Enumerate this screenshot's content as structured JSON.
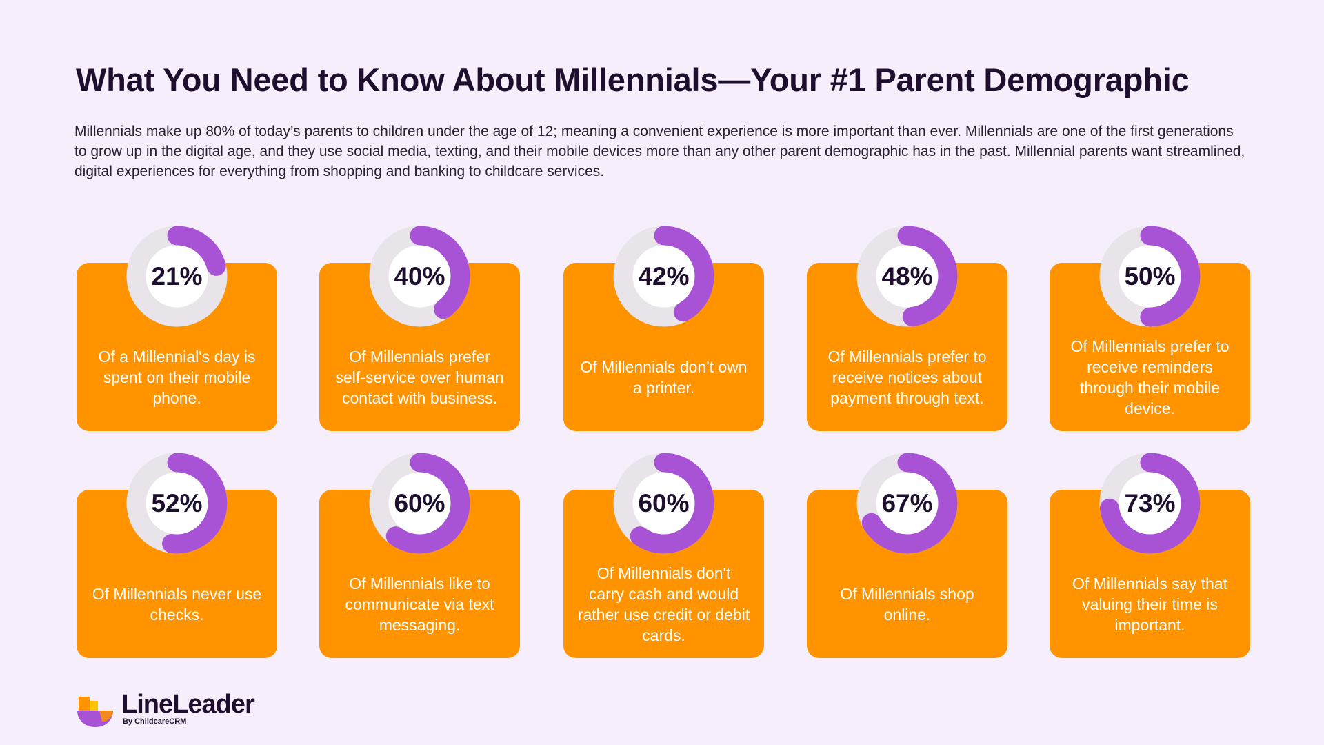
{
  "title": "What You Need to Know About Millennials—Your #1 Parent Demographic",
  "intro": "Millennials make up 80% of today’s parents to children under the age of 12; meaning a convenient experience is more important than ever. Millennials are one of the first generations to grow up in the digital age, and they use social media, texting, and their mobile devices more than any other parent demographic has in the past. Millennial parents want streamlined, digital experiences for everything from shopping and banking to childcare services.",
  "colors": {
    "card": "#ff9400",
    "arc": "#a853d6",
    "track": "#e8e4ea",
    "inner": "#ffffff",
    "background": "#f6eefa"
  },
  "chart_data": {
    "type": "donut",
    "values": [
      21,
      40,
      42,
      48,
      50,
      52,
      60,
      60,
      67,
      73
    ],
    "labels": [
      "21%",
      "40%",
      "42%",
      "48%",
      "50%",
      "52%",
      "60%",
      "60%",
      "67%",
      "73%"
    ],
    "descriptions": [
      "Of a Millennial's day is spent on their mobile phone.",
      "Of Millennials prefer self-service over human contact with business.",
      "Of Millennials don't own a printer.",
      "Of Millennials prefer to receive notices about payment through text.",
      "Of Millennials prefer to receive reminders through their mobile device.",
      "Of Millennials never use checks.",
      "Of Millennials like to communicate via text messaging.",
      "Of Millennials don't carry cash and would rather use credit or debit cards.",
      "Of Millennials shop online.",
      "Of Millennials say that valuing their time is important."
    ]
  },
  "logo": {
    "name": "LineLeader",
    "tagline": "By ChildcareCRM"
  }
}
